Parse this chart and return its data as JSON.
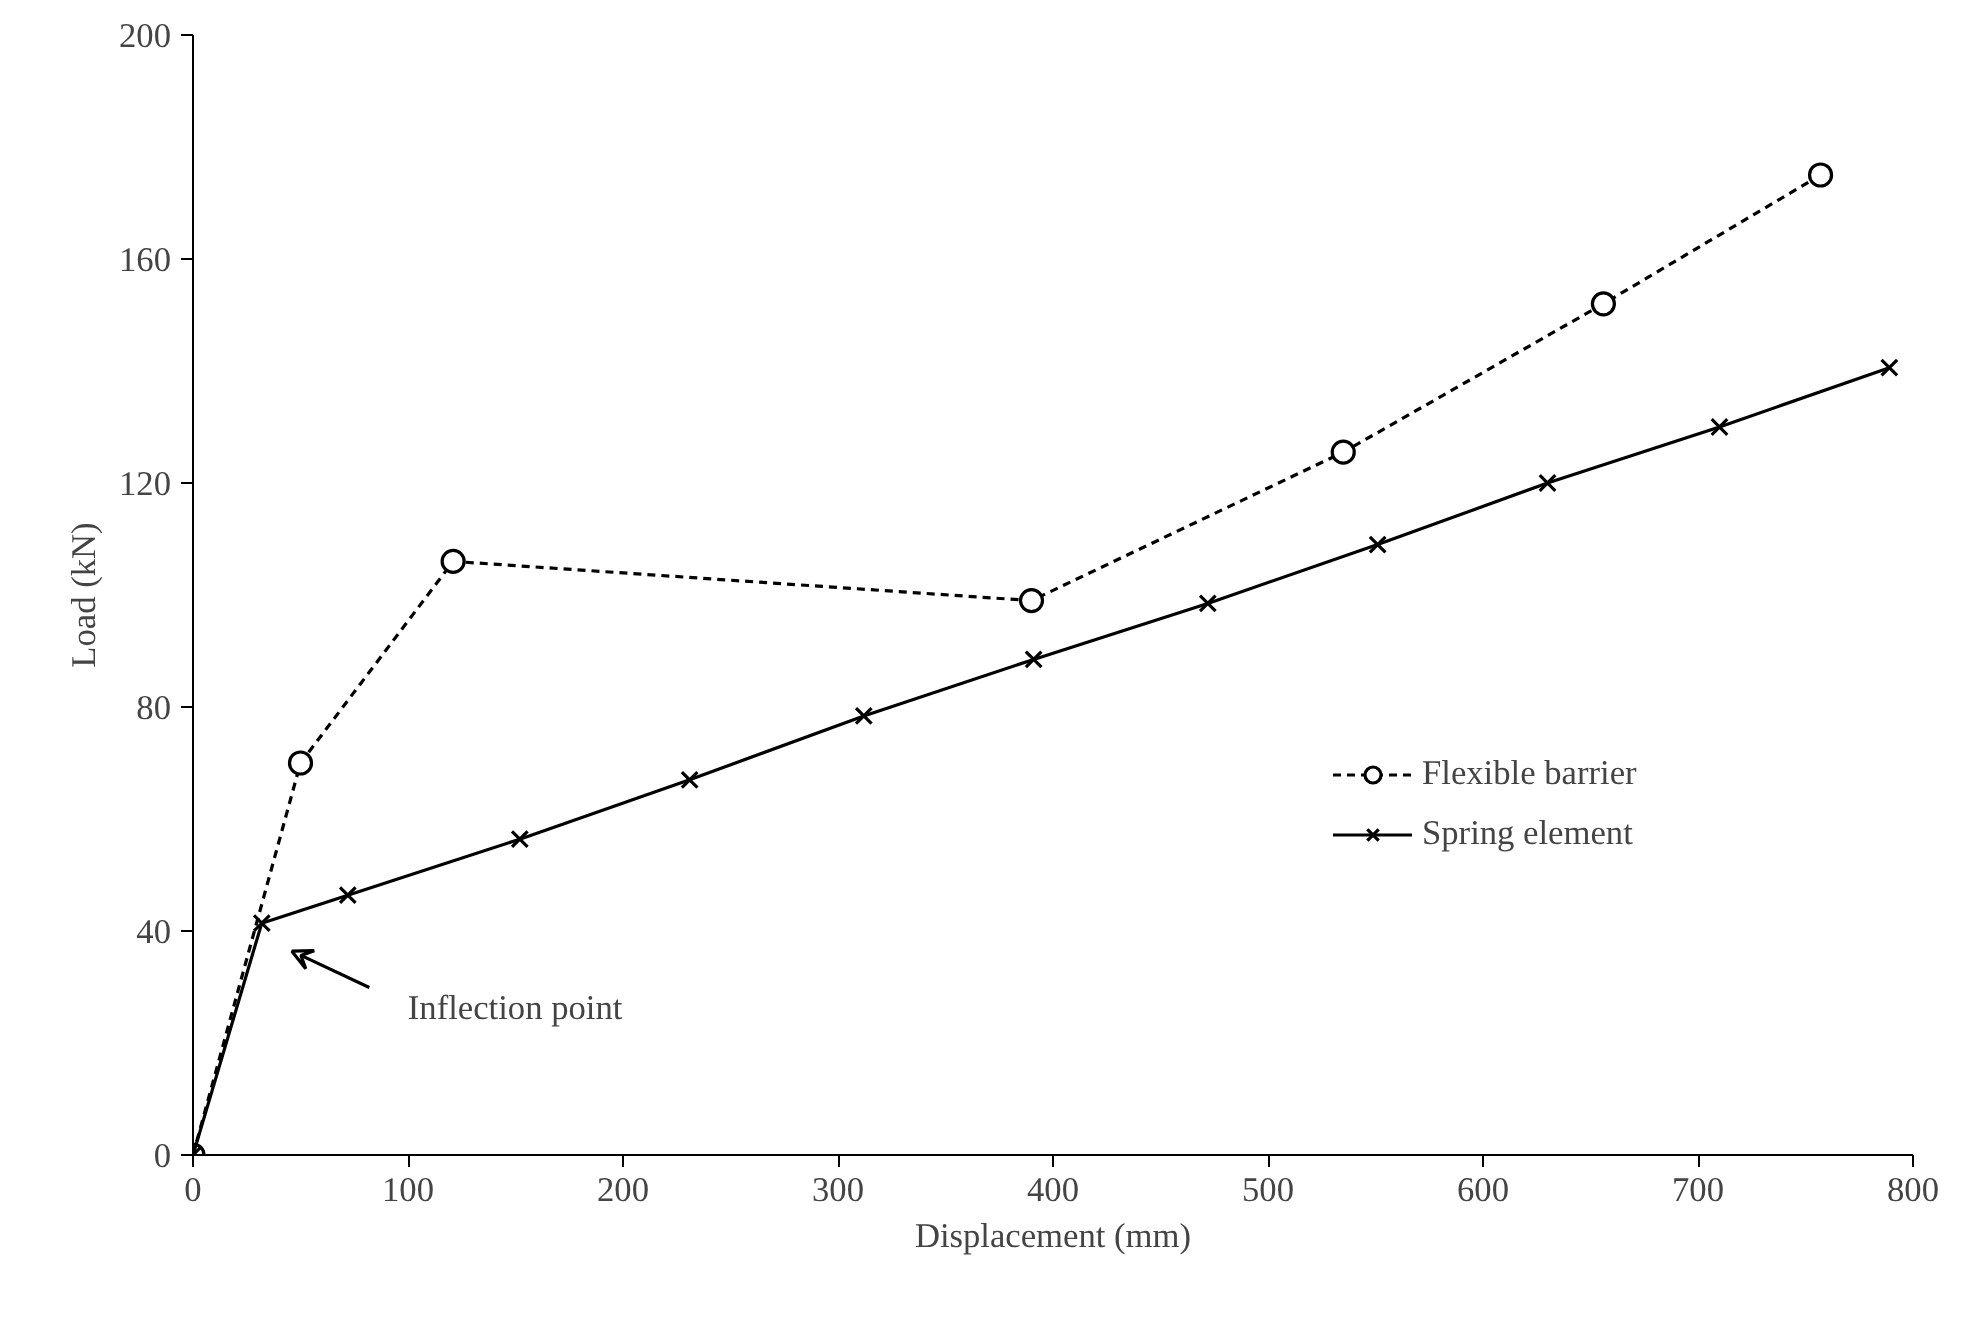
{
  "chart_data": {
    "type": "line",
    "xlabel": "Displacement (mm)",
    "ylabel": "Load (kN)",
    "xlim": [
      0,
      800
    ],
    "xticks": [
      0,
      100,
      200,
      300,
      400,
      500,
      600,
      700,
      800
    ],
    "ylim": [
      0,
      200
    ],
    "yticks": [
      0,
      40,
      80,
      120,
      160,
      200
    ],
    "grid": false,
    "legend": "bottom right",
    "series": [
      {
        "name": "Flexible barrier",
        "color": "#000000",
        "marker": "circle",
        "line_style": "dashed",
        "x": [
          0,
          50,
          121,
          390,
          535,
          656,
          757
        ],
        "values": [
          0,
          70,
          106,
          99,
          125.5,
          152,
          175
        ]
      },
      {
        "name": "Spring element",
        "color": "#000000",
        "marker": "cross",
        "line_style": "solid",
        "x": [
          0,
          32,
          72,
          152,
          231,
          312,
          391,
          472,
          551,
          630,
          710,
          789
        ],
        "values": [
          0,
          41.4,
          46.4,
          56.4,
          67,
          78.4,
          88.5,
          98.5,
          109,
          120,
          130,
          140.6
        ]
      }
    ],
    "annotations": [
      "Inflection point"
    ]
  }
}
